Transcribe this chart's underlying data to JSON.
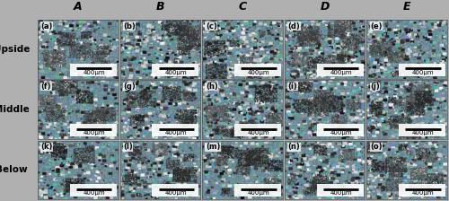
{
  "col_labels": [
    "A",
    "B",
    "C",
    "D",
    "E"
  ],
  "row_labels": [
    "Upside",
    "Middle",
    "Below"
  ],
  "subfig_labels": [
    [
      "(a)",
      "(b)",
      "(c)",
      "(d)",
      "(e)"
    ],
    [
      "(f)",
      "(g)",
      "(h)",
      "(i)",
      "(j)"
    ],
    [
      "(k)",
      "(l)",
      "(m)",
      "(n)",
      "(o)"
    ]
  ],
  "scale_bar_text": "400μm",
  "n_cols": 5,
  "n_rows": 3,
  "col_label_fontsize": 9,
  "row_label_fontsize": 7.5,
  "subfig_label_fontsize": 6.0,
  "scale_bar_fontsize": 5.0,
  "figure_bg": "#b0b0b0",
  "outer_bg": "#aaaaaa"
}
